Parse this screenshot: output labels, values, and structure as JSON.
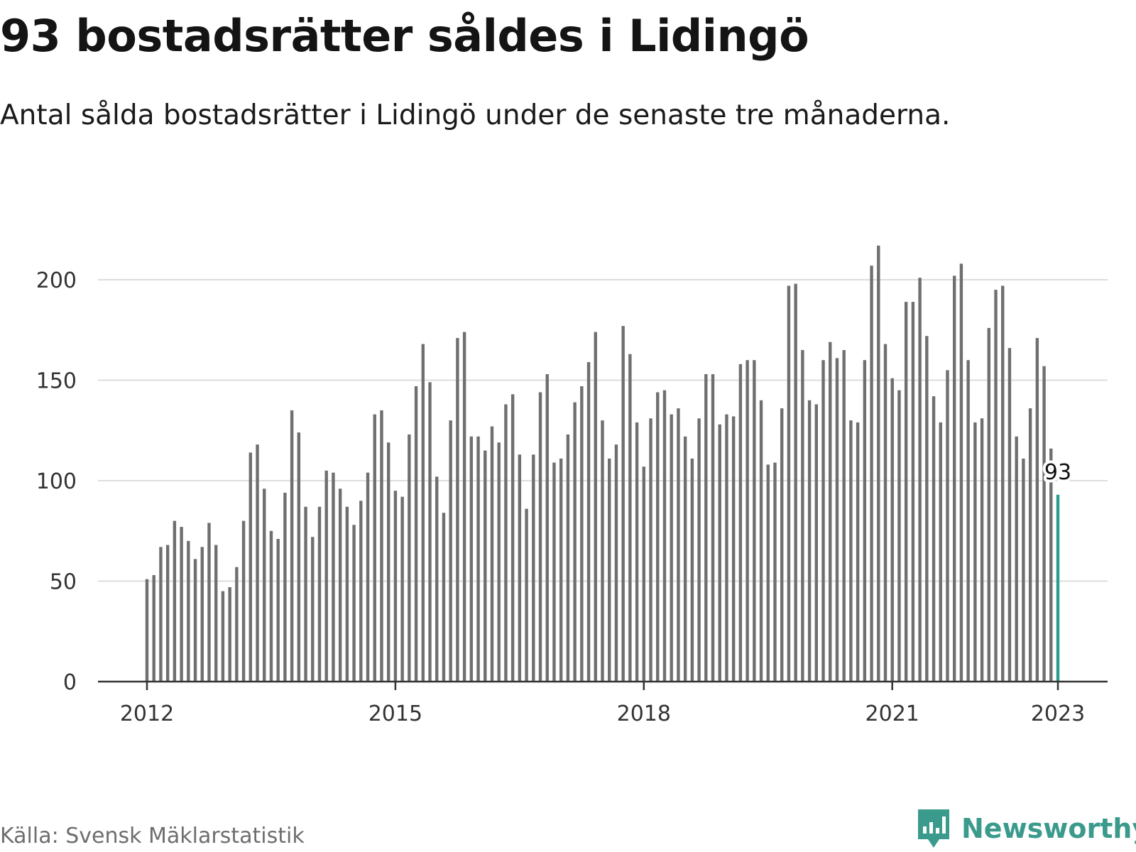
{
  "title": "93 bostadsrätter såldes i Lidingö",
  "subtitle": "Antal sålda bostadsrätter i Lidingö under de senaste tre månaderna.",
  "source": "Källa: Svensk Mäklarstatistik",
  "brand": "Newsworthy",
  "colors": {
    "bar": "#6f6f6f",
    "highlight": "#2a9d8f",
    "grid": "#dddddd",
    "axis": "#333333",
    "brand": "#3a9a8c"
  },
  "chart_data": {
    "type": "bar",
    "title": "93 bostadsrätter såldes i Lidingö",
    "subtitle": "Antal sålda bostadsrätter i Lidingö under de senaste tre månaderna.",
    "xlabel": "",
    "ylabel": "",
    "x_start": "2012-01",
    "x_tick_labels": [
      "2012",
      "2015",
      "2018",
      "2021",
      "2023"
    ],
    "y_ticks": [
      0,
      50,
      100,
      150,
      200
    ],
    "ylim": [
      0,
      220
    ],
    "grid": true,
    "highlight_label": "93",
    "values": [
      51,
      53,
      67,
      68,
      80,
      77,
      70,
      61,
      67,
      79,
      68,
      45,
      47,
      57,
      80,
      114,
      118,
      96,
      75,
      71,
      94,
      135,
      124,
      87,
      72,
      87,
      105,
      104,
      96,
      87,
      78,
      90,
      104,
      133,
      135,
      119,
      95,
      92,
      123,
      147,
      168,
      149,
      102,
      84,
      130,
      171,
      174,
      122,
      122,
      115,
      127,
      119,
      138,
      143,
      113,
      86,
      113,
      144,
      153,
      109,
      111,
      123,
      139,
      147,
      159,
      174,
      130,
      111,
      118,
      177,
      163,
      129,
      107,
      131,
      144,
      145,
      133,
      136,
      122,
      111,
      131,
      153,
      153,
      128,
      133,
      132,
      158,
      160,
      160,
      140,
      108,
      109,
      136,
      197,
      198,
      165,
      140,
      138,
      160,
      169,
      161,
      165,
      130,
      129,
      160,
      207,
      217,
      168,
      151,
      145,
      189,
      189,
      201,
      172,
      142,
      129,
      155,
      202,
      208,
      160,
      129,
      131,
      176,
      195,
      197,
      166,
      122,
      111,
      136,
      171,
      157,
      116,
      93
    ]
  }
}
